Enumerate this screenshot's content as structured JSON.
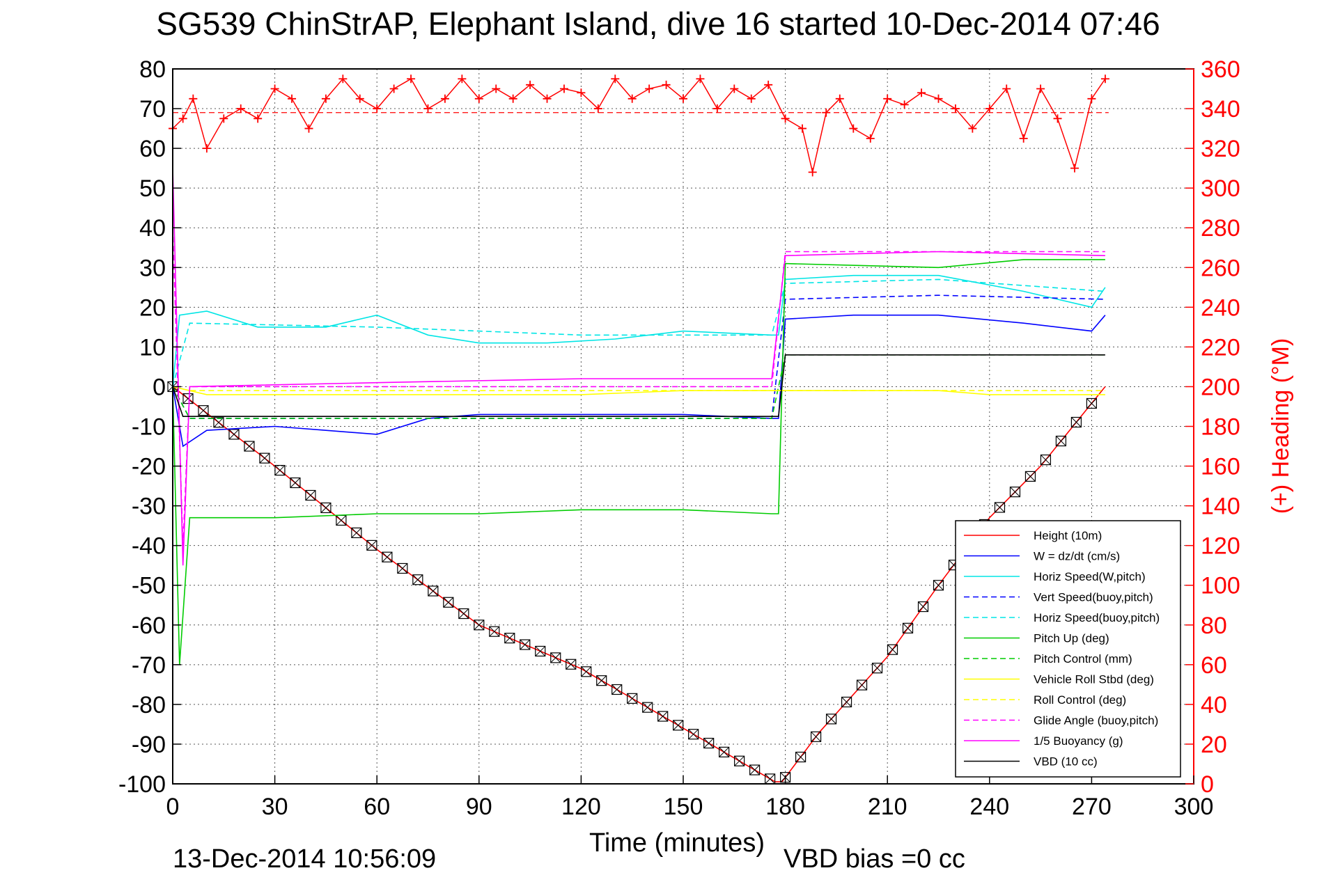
{
  "chart_data": {
    "type": "line",
    "title": "SG539 ChinStrAP, Elephant Island, dive 16 started 10-Dec-2014 07:46",
    "xlabel": "Time (minutes)",
    "ylabel_left": "",
    "ylabel_right": "(+) Heading (°M)",
    "xlim": [
      0,
      300
    ],
    "ylim": [
      -100,
      80
    ],
    "ylim_right": [
      0,
      360
    ],
    "xticks": [
      "0",
      "30",
      "60",
      "90",
      "120",
      "150",
      "180",
      "210",
      "240",
      "270",
      "300"
    ],
    "yticks": [
      "80",
      "70",
      "60",
      "50",
      "40",
      "30",
      "20",
      "10",
      "0",
      "-10",
      "-20",
      "-30",
      "-40",
      "-50",
      "-60",
      "-70",
      "-80",
      "-90",
      "-100"
    ],
    "yticks_right": [
      "360",
      "340",
      "320",
      "300",
      "280",
      "260",
      "240",
      "220",
      "200",
      "180",
      "160",
      "140",
      "120",
      "100",
      "80",
      "60",
      "40",
      "20",
      "0"
    ],
    "grid": true,
    "legend_position": "bottom-right",
    "footer_date": "13-Dec-2014 10:56:09",
    "footer_note": "VBD bias =0 cc",
    "series": [
      {
        "name": "Height (10m)",
        "color": "#ff0000",
        "style": "solid",
        "marker": "bowtie-square",
        "x": [
          0,
          30,
          60,
          90,
          120,
          150,
          177,
          179,
          190,
          210,
          225,
          240,
          255,
          274
        ],
        "y": [
          0,
          -20,
          -41,
          -60,
          -71,
          -86,
          -99.5,
          -99.5,
          -87,
          -68,
          -50,
          -33,
          -20,
          0
        ]
      },
      {
        "name": "W = dz/dt (cm/s)",
        "color": "#0000ff",
        "style": "solid",
        "x": [
          0,
          3,
          10,
          30,
          45,
          60,
          75,
          90,
          120,
          150,
          176,
          178,
          180,
          200,
          225,
          250,
          270,
          274
        ],
        "y": [
          0,
          -15,
          -11,
          -10,
          -11,
          -12,
          -8,
          -7,
          -7,
          -7,
          -8,
          -8,
          17,
          18,
          18,
          16,
          14,
          18
        ]
      },
      {
        "name": "Horiz Speed(W,pitch)",
        "color": "#00e5e5",
        "style": "solid",
        "x": [
          0,
          2,
          10,
          25,
          45,
          60,
          75,
          90,
          110,
          130,
          150,
          176,
          178,
          180,
          200,
          225,
          250,
          270,
          274
        ],
        "y": [
          0,
          18,
          19,
          15,
          15,
          18,
          13,
          11,
          11,
          12,
          14,
          13,
          13,
          27,
          28,
          28,
          24,
          20,
          25
        ]
      },
      {
        "name": "Vert Speed(buoy,pitch)",
        "color": "#0000ff",
        "style": "dashed",
        "x": [
          0,
          5,
          60,
          120,
          176,
          180,
          225,
          274
        ],
        "y": [
          0,
          -8,
          -8,
          -8,
          -8,
          22,
          23,
          22
        ]
      },
      {
        "name": "Horiz Speed(buoy,pitch)",
        "color": "#00e5e5",
        "style": "dashed",
        "x": [
          0,
          5,
          60,
          120,
          176,
          180,
          225,
          274
        ],
        "y": [
          0,
          16,
          15,
          13,
          13,
          26,
          27,
          24
        ]
      },
      {
        "name": "Pitch Up (deg)",
        "color": "#00cc00",
        "style": "solid",
        "x": [
          0,
          2,
          5,
          30,
          60,
          90,
          120,
          150,
          176,
          178,
          180,
          225,
          250,
          274
        ],
        "y": [
          0,
          -70,
          -33,
          -33,
          -32,
          -32,
          -31,
          -31,
          -32,
          -32,
          31,
          30,
          32,
          32
        ]
      },
      {
        "name": "Pitch Control (mm)",
        "color": "#00cc00",
        "style": "dashed",
        "x": [
          0,
          5,
          176,
          180,
          274
        ],
        "y": [
          0,
          -8,
          -8,
          8,
          8
        ]
      },
      {
        "name": "Vehicle Roll Stbd (deg)",
        "color": "#ffff00",
        "style": "solid",
        "x": [
          0,
          10,
          30,
          60,
          90,
          120,
          150,
          176,
          178,
          180,
          225,
          240,
          270,
          274
        ],
        "y": [
          0,
          -2,
          -2,
          -2,
          -2,
          -2,
          -1,
          -1,
          -1,
          -1,
          -1,
          -2,
          -2,
          -2
        ]
      },
      {
        "name": "Roll Control (deg)",
        "color": "#ffff00",
        "style": "dashed",
        "x": [
          0,
          5,
          176,
          180,
          274
        ],
        "y": [
          0,
          -1,
          -1,
          -1,
          -1
        ]
      },
      {
        "name": "Glide Angle (buoy,pitch)",
        "color": "#ff00ff",
        "style": "dashed",
        "x": [
          0,
          3,
          5,
          176,
          180,
          225,
          274
        ],
        "y": [
          40,
          -40,
          0,
          0,
          34,
          34,
          34
        ]
      },
      {
        "name": "1/5 Buoyancy (g)",
        "color": "#ff00ff",
        "style": "solid",
        "x": [
          0,
          3,
          5,
          60,
          120,
          176,
          180,
          225,
          274
        ],
        "y": [
          55,
          -45,
          0,
          1,
          2,
          2,
          33,
          34,
          33
        ]
      },
      {
        "name": "VBD (10 cc)",
        "color": "#000000",
        "style": "solid",
        "x": [
          0,
          3,
          176,
          178,
          180,
          274
        ],
        "y": [
          0,
          -7.5,
          -7.5,
          -7.5,
          8,
          8
        ]
      }
    ],
    "heading": {
      "name": "(+) Heading (°M)",
      "color": "#ff0000",
      "marker": "plus",
      "mean_line": 338,
      "x": [
        0,
        3,
        6,
        10,
        15,
        20,
        25,
        30,
        35,
        40,
        45,
        50,
        55,
        60,
        65,
        70,
        75,
        80,
        85,
        90,
        95,
        100,
        105,
        110,
        115,
        120,
        125,
        130,
        135,
        140,
        145,
        150,
        155,
        160,
        165,
        170,
        175,
        180,
        185,
        188,
        192,
        196,
        200,
        205,
        210,
        215,
        220,
        225,
        230,
        235,
        240,
        245,
        250,
        255,
        260,
        265,
        270,
        274
      ],
      "y": [
        330,
        335,
        345,
        320,
        335,
        340,
        335,
        350,
        345,
        330,
        345,
        355,
        345,
        340,
        350,
        355,
        340,
        345,
        355,
        345,
        350,
        345,
        352,
        345,
        350,
        348,
        340,
        355,
        345,
        350,
        352,
        345,
        355,
        340,
        350,
        345,
        352,
        335,
        330,
        308,
        338,
        345,
        330,
        325,
        345,
        342,
        348,
        345,
        340,
        330,
        340,
        350,
        325,
        350,
        335,
        310,
        345,
        355
      ]
    }
  }
}
